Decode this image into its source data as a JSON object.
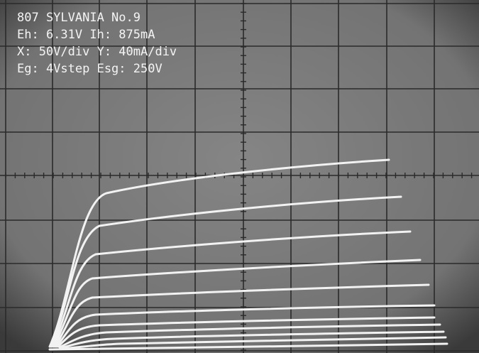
{
  "overlay": {
    "lines": [
      "807 SYLVANIA No.9",
      "Eh: 6.31V Ih: 875mA",
      "X: 50V/div Y: 40mA/div",
      "Eg: 4Vstep Esg: 250V"
    ]
  }
}
